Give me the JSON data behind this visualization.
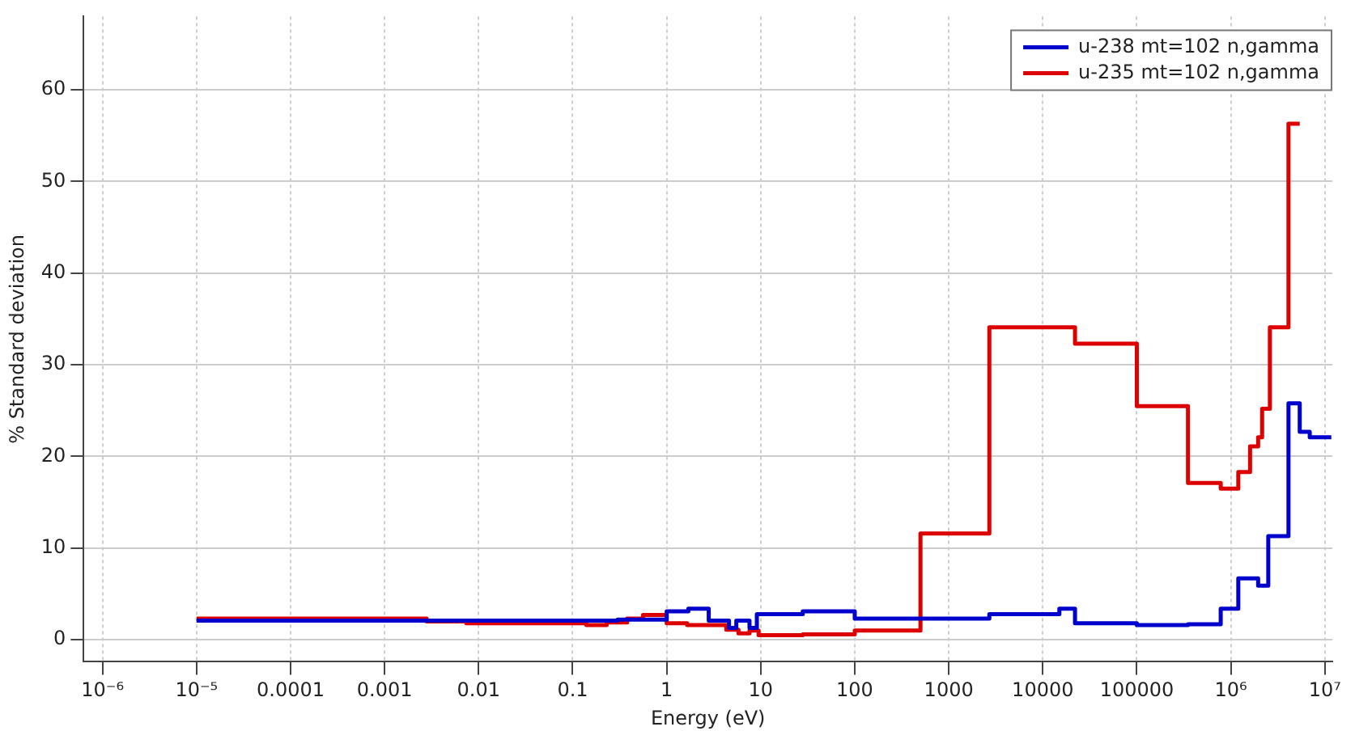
{
  "chart_data": {
    "type": "step",
    "xlabel": "Energy (eV)",
    "ylabel": "% Standard deviation",
    "log": "x",
    "xlim": [
      6.3e-07,
      12000000.0
    ],
    "ylim": [
      -2.4,
      68
    ],
    "xticks": [
      {
        "value": 1e-06,
        "label": "10⁻⁶"
      },
      {
        "value": 1e-05,
        "label": "10⁻⁵"
      },
      0.0001,
      0.001,
      0.01,
      0.1,
      1,
      10,
      100,
      1000,
      10000,
      100000,
      {
        "value": 1000000,
        "label": "10⁶"
      },
      {
        "value": 10000000,
        "label": "10⁷"
      }
    ],
    "yticks": [
      0,
      10,
      20,
      30,
      40,
      50,
      60
    ],
    "grid": true,
    "legend": "top right",
    "marker": "none",
    "line_style": "solid",
    "series": [
      {
        "name": "u-238 mt=102 n,gamma",
        "color": "#0000cc",
        "x": [
          1e-05,
          0.3,
          1,
          1.7,
          2.8,
          4.6,
          5.5,
          7.6,
          9.1,
          28,
          100,
          2700,
          15000,
          22000,
          100000,
          350000,
          780000,
          1200000,
          1950000,
          2500000,
          4100000,
          5400000,
          6900000,
          11700000
        ],
        "values": [
          2.1,
          2.2,
          3.1,
          3.4,
          2.1,
          1.3,
          2.1,
          1.3,
          2.8,
          3.1,
          2.3,
          2.8,
          3.4,
          1.8,
          1.6,
          1.7,
          3.4,
          6.7,
          5.9,
          11.3,
          25.8,
          22.7,
          22.1,
          22.1
        ]
      },
      {
        "name": "u-235 mt=102 n,gamma",
        "color": "#dd0000",
        "x": [
          1e-05,
          0.0028,
          0.0074,
          0.14,
          0.23,
          0.38,
          0.56,
          1,
          1.65,
          4.3,
          5.8,
          7.6,
          9.5,
          28,
          100,
          500,
          2700,
          22000,
          100000,
          350000,
          780000,
          1200000,
          1600000,
          1950000,
          2150000,
          2600000,
          4100000,
          5400000
        ],
        "values": [
          2.3,
          2.0,
          1.8,
          1.6,
          1.9,
          2.3,
          2.7,
          1.8,
          1.6,
          1.1,
          0.7,
          1.0,
          0.5,
          0.6,
          1.0,
          11.6,
          34.1,
          32.3,
          25.5,
          17.1,
          16.5,
          18.3,
          21.1,
          22.1,
          25.2,
          34.1,
          56.3,
          56.3
        ]
      }
    ]
  }
}
